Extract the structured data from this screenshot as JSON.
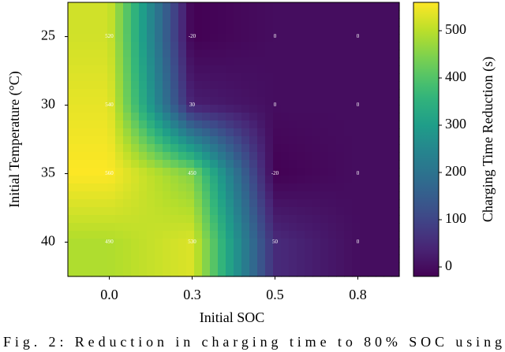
{
  "chart_data": {
    "type": "heatmap",
    "x_label": "Initial SOC",
    "y_label": "Initial Temperature (°C)",
    "x_categories": [
      "0.0",
      "0.3",
      "0.5",
      "0.8"
    ],
    "y_categories": [
      25,
      30,
      35,
      40
    ],
    "values": [
      [
        520,
        -20,
        0,
        0
      ],
      [
        540,
        30,
        0,
        0
      ],
      [
        560,
        450,
        -20,
        0
      ],
      [
        490,
        530,
        50,
        0
      ]
    ],
    "colormap": "viridis",
    "zlim": [
      -20,
      560
    ],
    "zticks": [
      0,
      100,
      200,
      300,
      400,
      500
    ],
    "colorbar_label": "Charging Time Reduction (s)",
    "caption": "Fig. 2: Reduction in charging time to 80% SOC using"
  }
}
